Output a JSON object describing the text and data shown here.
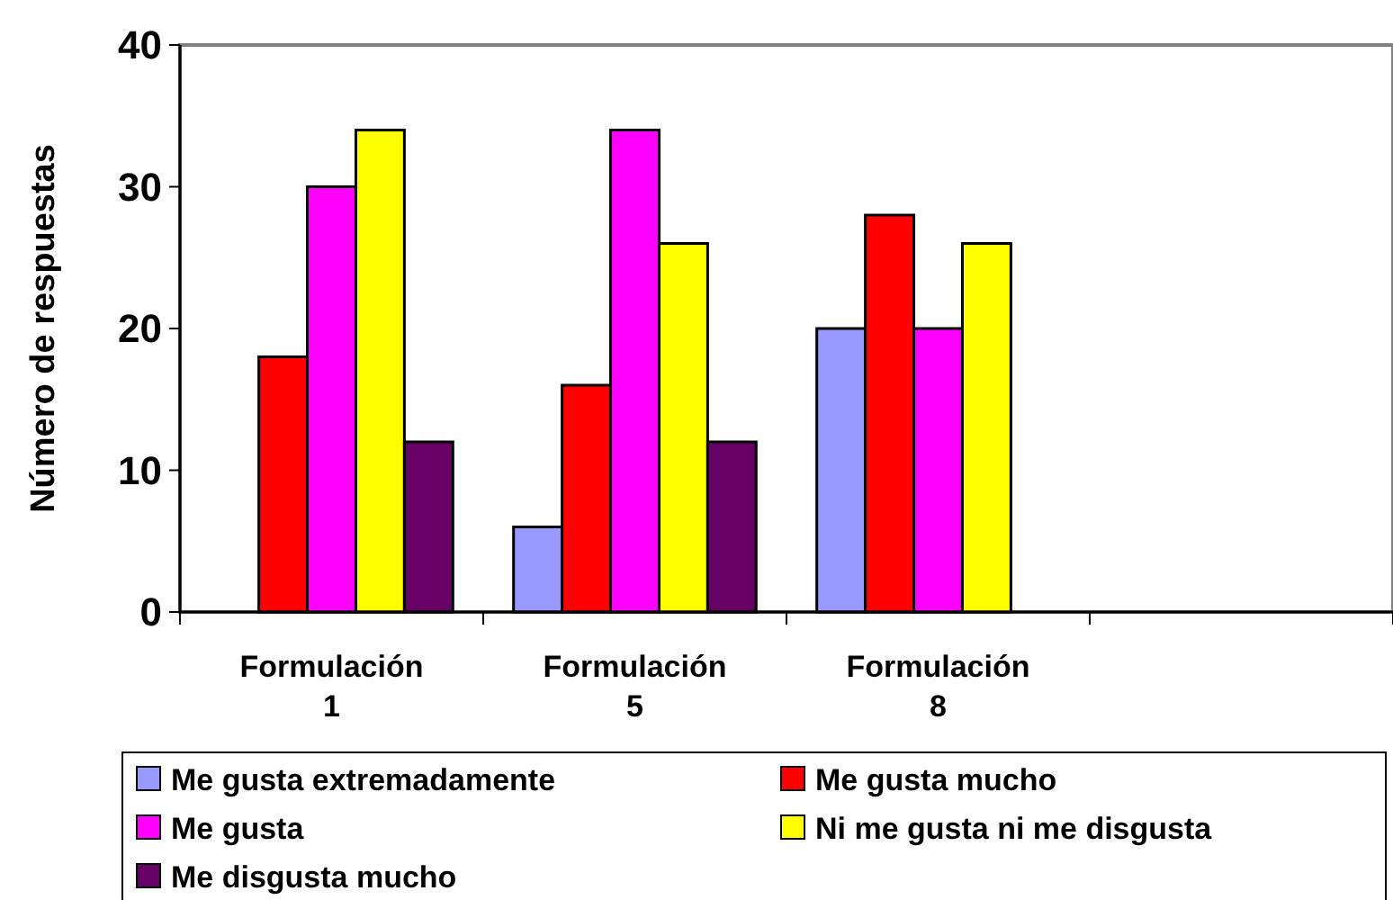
{
  "chart_data": {
    "type": "bar",
    "ylabel": "Número de respuestas",
    "categories": [
      "Formulación 1",
      "Formulación 5",
      "Formulación 8",
      null
    ],
    "series": [
      {
        "name": "Me gusta extremadamente",
        "color": "#9999ff",
        "values": [
          0,
          6,
          20,
          null
        ]
      },
      {
        "name": "Me gusta mucho",
        "color": "#ff0000",
        "values": [
          18,
          16,
          28,
          null
        ]
      },
      {
        "name": "Me gusta",
        "color": "#ff00ff",
        "values": [
          30,
          34,
          20,
          null
        ]
      },
      {
        "name": "Ni me gusta ni me disgusta",
        "color": "#ffff00",
        "values": [
          34,
          26,
          26,
          null
        ]
      },
      {
        "name": "Me disgusta mucho",
        "color": "#660066",
        "values": [
          12,
          12,
          0,
          null
        ]
      }
    ],
    "ylim": [
      0,
      40
    ],
    "yticks": [
      0,
      10,
      20,
      30,
      40
    ],
    "legend": "bottom",
    "grid": false
  }
}
